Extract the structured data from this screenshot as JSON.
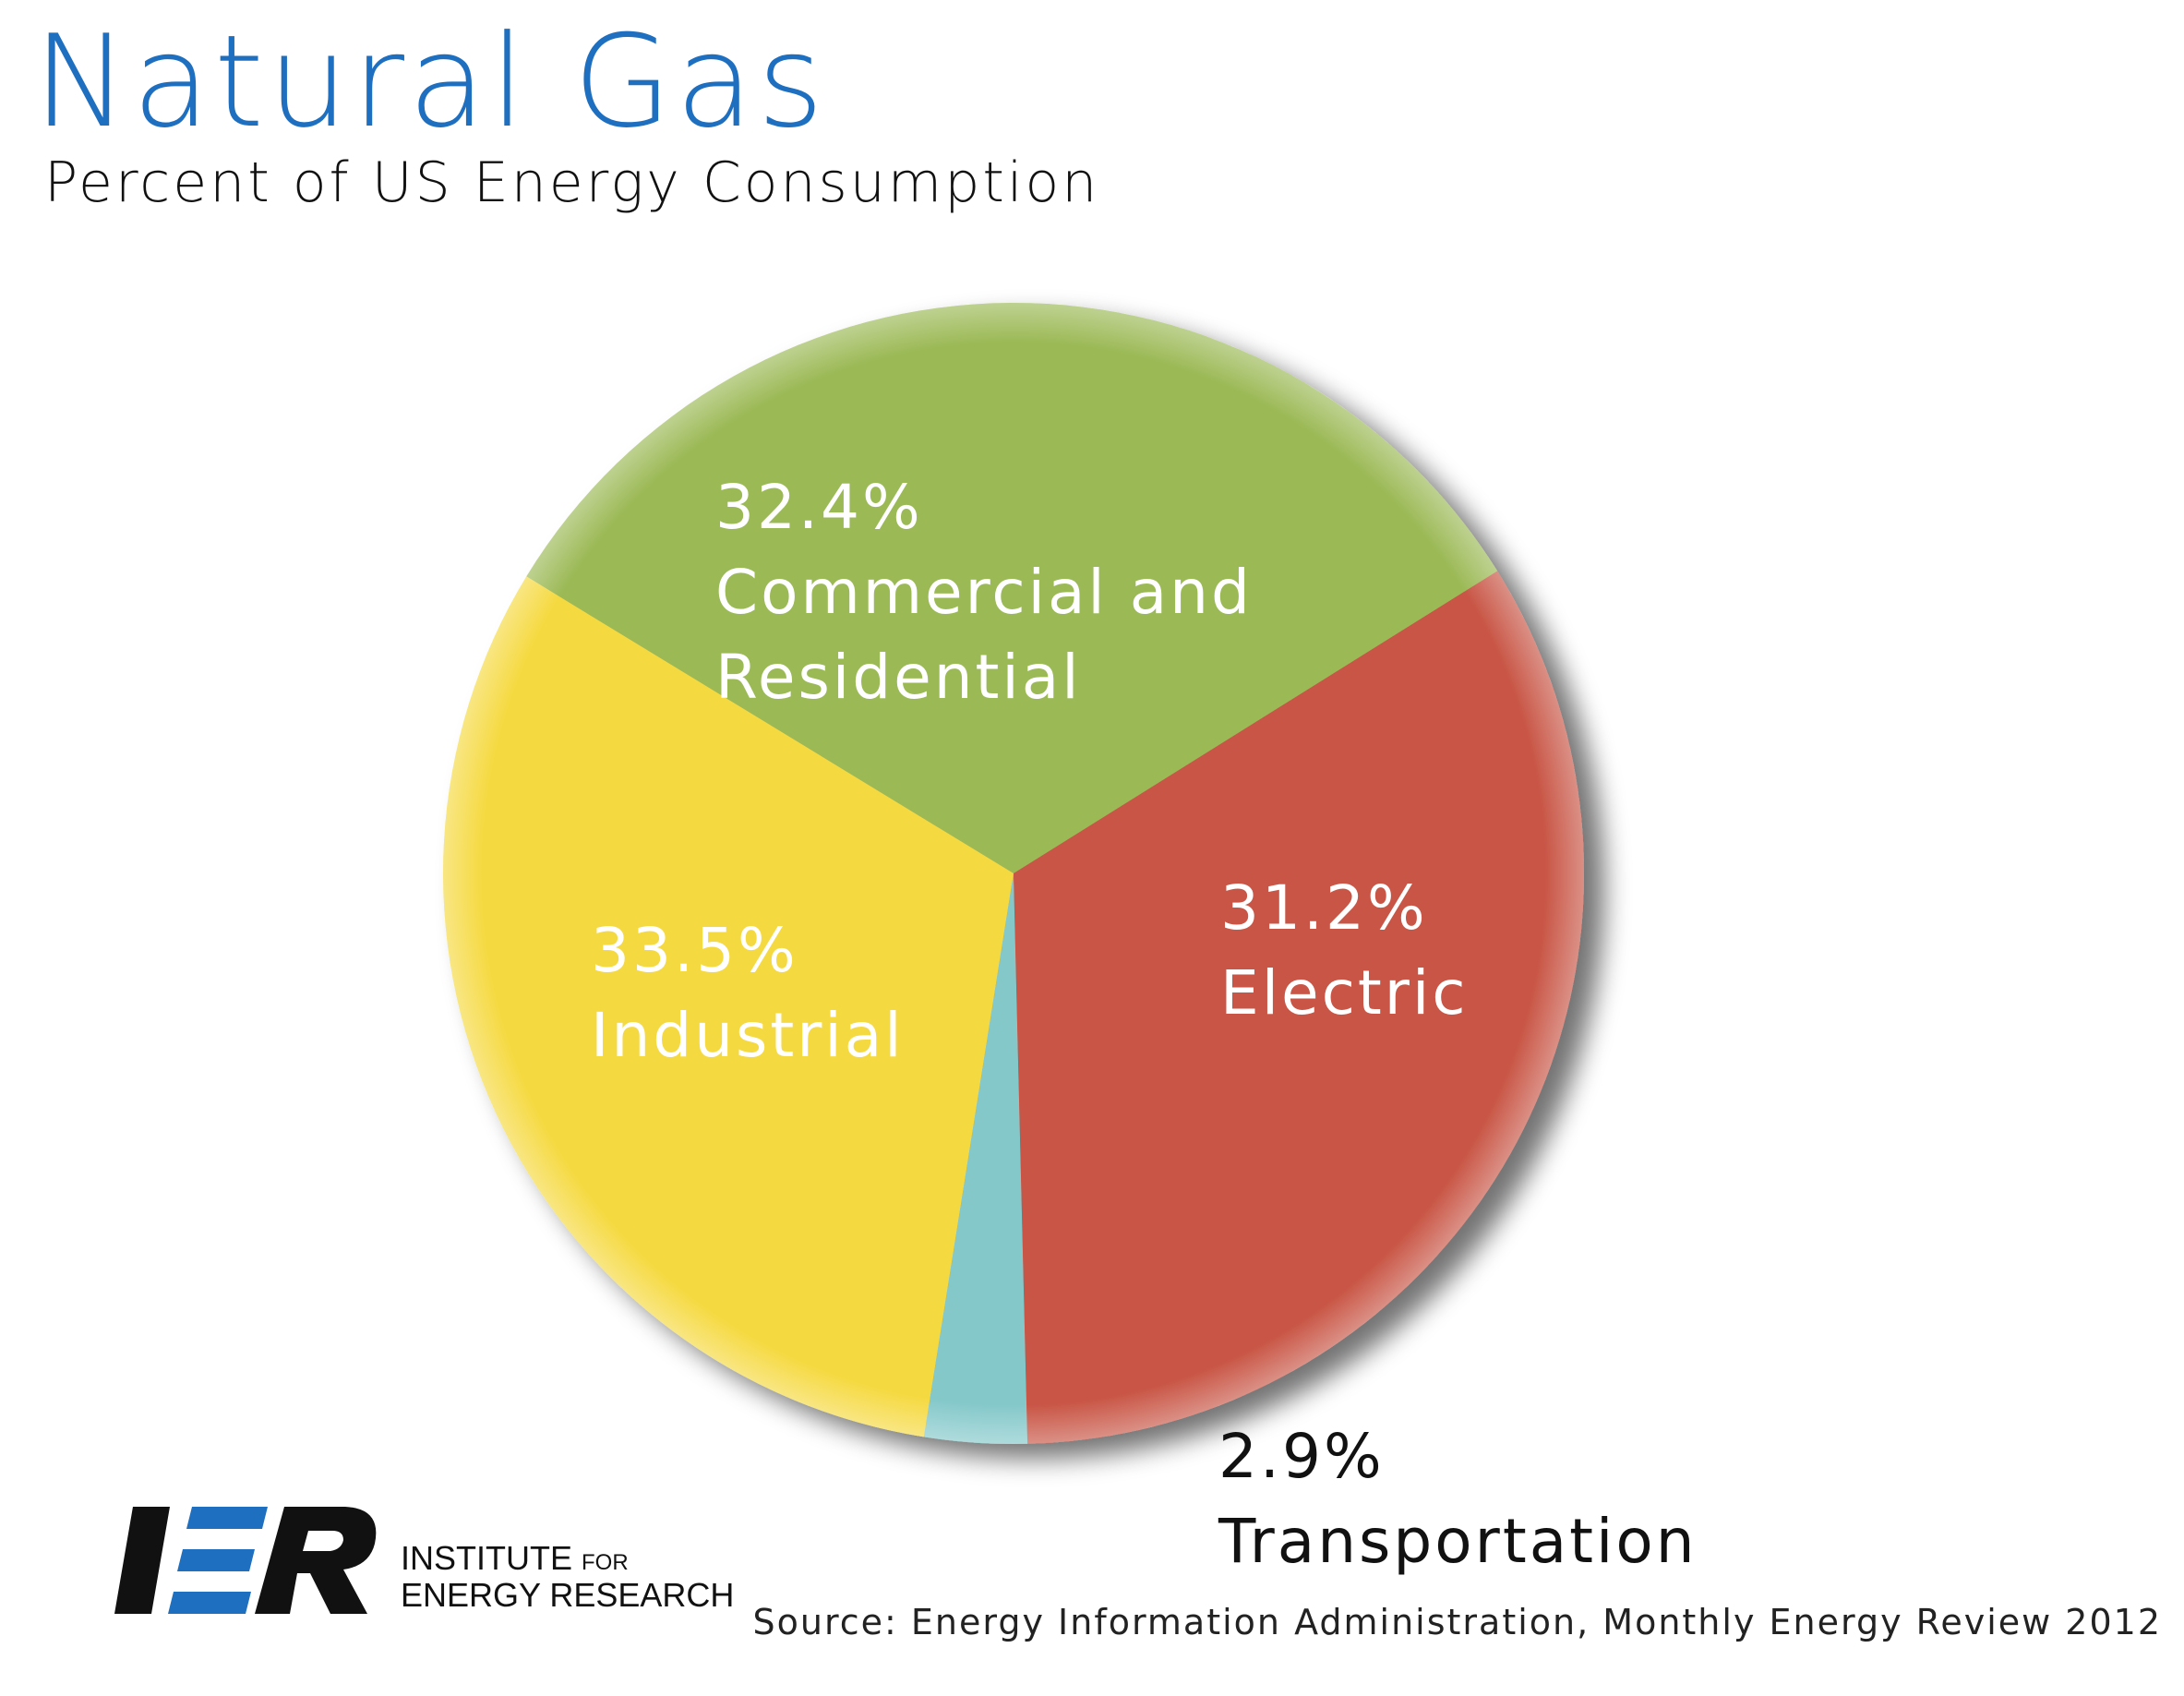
{
  "chart_data": {
    "type": "pie",
    "title": "Natural Gas",
    "subtitle": "Percent of US Energy Consumption",
    "slices": [
      {
        "name": "Commercial and Residential",
        "value": 32.4,
        "label_value": "32.4%",
        "label_lines": [
          "Commercial and",
          "Residential"
        ],
        "color": "#9bb955",
        "text_color": "#ffffff"
      },
      {
        "name": "Electric",
        "value": 31.2,
        "label_value": "31.2%",
        "label_lines": [
          "Electric"
        ],
        "color": "#f5d93f",
        "text_color": "#ffffff"
      },
      {
        "name": "Transportation",
        "value": 2.9,
        "label_value": "2.9%",
        "label_lines": [
          "Transportation"
        ],
        "color": "#84c8ca",
        "text_color": "#111111"
      },
      {
        "name": "Industrial",
        "value": 33.5,
        "label_value": "33.5%",
        "label_lines": [
          "Industrial"
        ],
        "color": "#c85444",
        "text_color": "#ffffff"
      }
    ]
  },
  "logo": {
    "mark": "IER",
    "line1": "INSTITUTE",
    "line1_small": "FOR",
    "line2": "ENERGY RESEARCH",
    "accent_color": "#1f6fc0"
  },
  "source": "Source: Energy Information Administration, Monthly Energy Review 2012"
}
